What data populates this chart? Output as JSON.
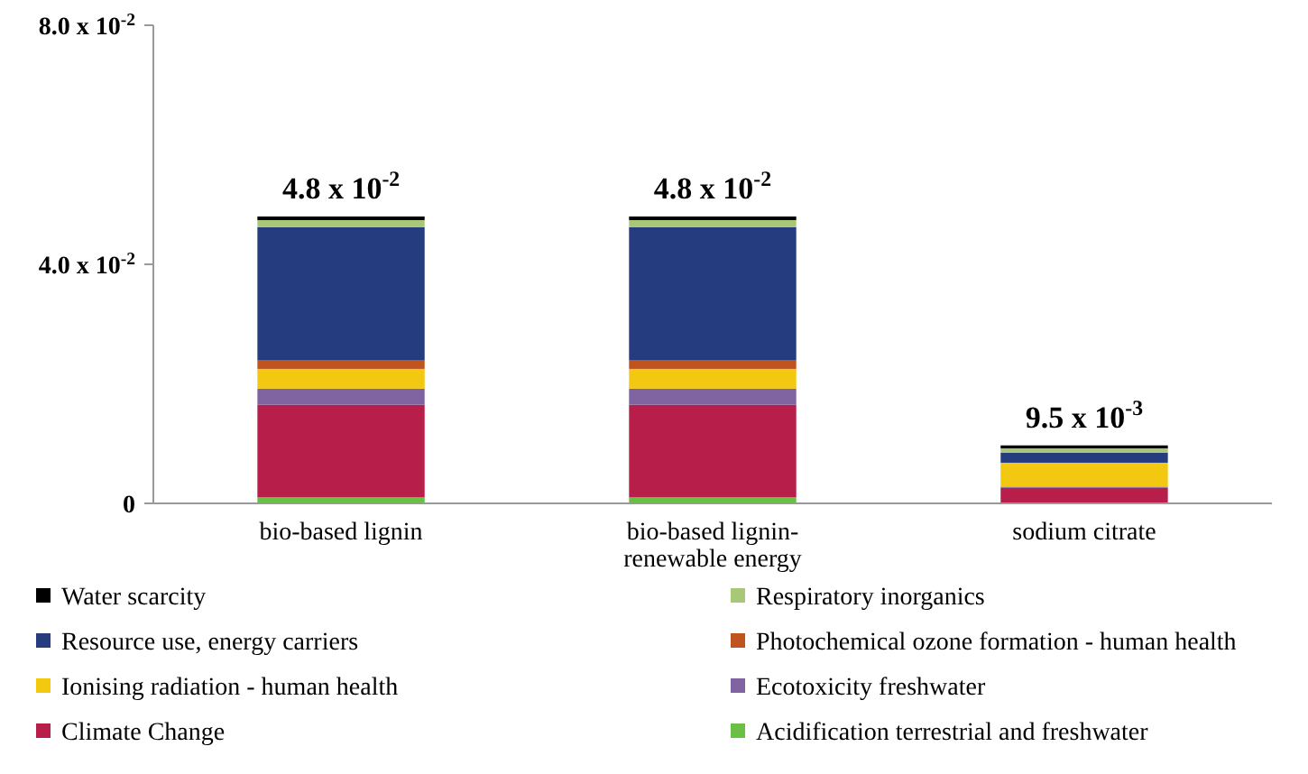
{
  "chart_data": {
    "type": "bar",
    "stacked": true,
    "categories": [
      "bio-based lignin",
      "bio-based lignin- renewable energy",
      "sodium citrate"
    ],
    "series": [
      {
        "name": "Acidification terrestrial and freshwater",
        "color": "#6abf45",
        "values": [
          0.001,
          0.001,
          null
        ]
      },
      {
        "name": "Climate Change",
        "color": "#b81e4a",
        "values": [
          0.0155,
          0.0155,
          0.0026
        ]
      },
      {
        "name": "Ecotoxicity freshwater",
        "color": "#8064a2",
        "values": [
          0.0027,
          0.0027,
          0.0002
        ]
      },
      {
        "name": "Ionising radiation - human health",
        "color": "#f2c811",
        "values": [
          0.0033,
          0.0033,
          0.004
        ]
      },
      {
        "name": "Photochemical ozone formation - human health",
        "color": "#c0541e",
        "values": [
          0.0015,
          0.0015,
          null
        ]
      },
      {
        "name": "Resource use, energy carriers",
        "color": "#253c7f",
        "values": [
          0.0222,
          0.0222,
          0.0017
        ]
      },
      {
        "name": "Respiratory inorganics",
        "color": "#a8c878",
        "values": [
          0.0012,
          0.0012,
          0.0007
        ]
      },
      {
        "name": "Water scarcity",
        "color": "#000000",
        "values": [
          0.0006,
          0.0006,
          0.0005
        ]
      }
    ],
    "totals": [
      "4.8 x 10$^{-2}$",
      "4.8 x 10$^{-2}$",
      "9.5 x 10$^{-3}$"
    ],
    "ylim": [
      0,
      0.08
    ],
    "yticks": [
      0,
      {
        "value": 0.04,
        "label": "4.0 x 10$^{-2}$"
      },
      {
        "value": 0.08,
        "label": "8.0 x 10$^{-2}$"
      }
    ],
    "grid": false,
    "legend": "bottom"
  }
}
